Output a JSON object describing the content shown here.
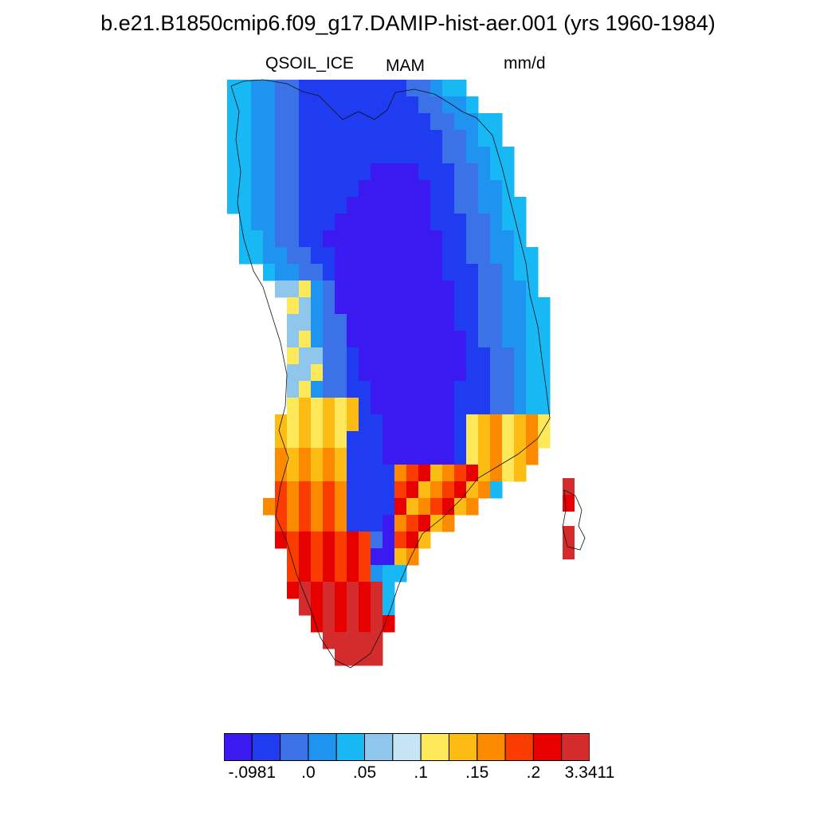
{
  "title": "b.e21.B1850cmip6.f09_g17.DAMIP-hist-aer.001 (yrs 1960-1984)",
  "variable": "QSOIL_ICE",
  "season": "MAM",
  "units": "mm/d",
  "colorbar": {
    "colors": [
      "#3a1af0",
      "#1f3cf0",
      "#3b72e8",
      "#1f93f0",
      "#18b8f5",
      "#8ec6ec",
      "#c5e4f4",
      "#fde85a",
      "#fcbc14",
      "#fc8a00",
      "#fb3c00",
      "#e60000",
      "#d42c2c"
    ],
    "tick_labels": [
      {
        "label": "-.0981",
        "boundary": 0
      },
      {
        "label": ".0",
        "boundary": 1
      },
      {
        "label": ".05",
        "boundary": 2
      },
      {
        "label": ".1",
        "boundary": 3
      },
      {
        "label": ".15",
        "boundary": 4
      },
      {
        "label": ".2",
        "boundary": 5
      },
      {
        "label": "3.3411",
        "boundary": 6
      }
    ]
  }
}
